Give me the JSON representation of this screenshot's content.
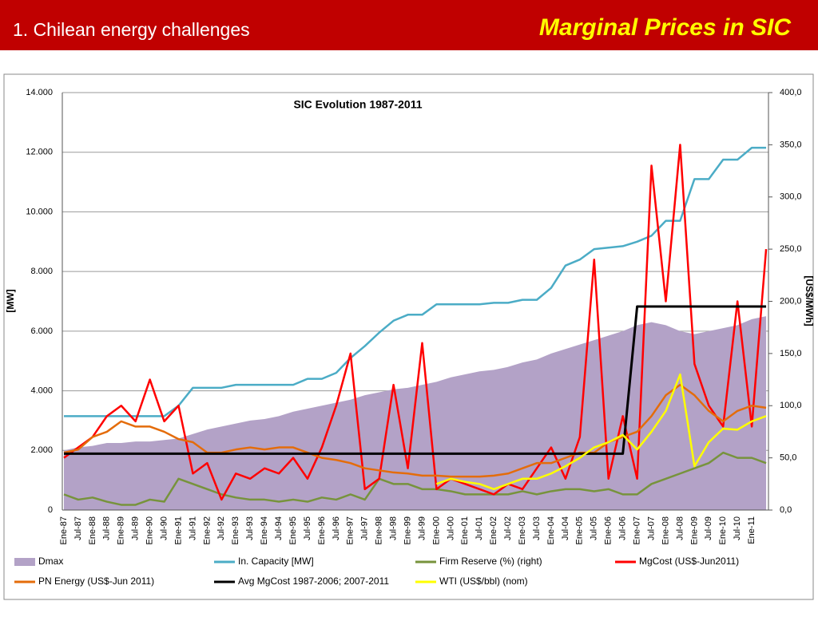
{
  "header": {
    "title": "1. Chilean energy challenges",
    "subtitle": "Marginal Prices in SIC"
  },
  "chart_data": {
    "type": "line",
    "title": "SIC Evolution 1987-2011",
    "ylabel": "[MW]",
    "y2label": "[US$/MWh]",
    "categories": [
      "Ene-87",
      "Jul-87",
      "Ene-88",
      "Jul-88",
      "Ene-89",
      "Jul-89",
      "Ene-90",
      "Jul-90",
      "Ene-91",
      "Jul-91",
      "Ene-92",
      "Jul-92",
      "Ene-93",
      "Jul-93",
      "Ene-94",
      "Jul-94",
      "Ene-95",
      "Jul-95",
      "Ene-96",
      "Jul-96",
      "Ene-97",
      "Jul-97",
      "Ene-98",
      "Jul-98",
      "Ene-99",
      "Jul-99",
      "Ene-00",
      "Jul-00",
      "Ene-01",
      "Jul-01",
      "Ene-02",
      "Jul-02",
      "Ene-03",
      "Jul-03",
      "Ene-04",
      "Jul-04",
      "Ene-05",
      "Jul-05",
      "Ene-06",
      "Jul-06",
      "Ene-07",
      "Jul-07",
      "Ene-08",
      "Jul-08",
      "Ene-09",
      "Jul-09",
      "Ene-10",
      "Jul-10",
      "Ene-11",
      null
    ],
    "ylim": [
      0,
      14000
    ],
    "yticks": [
      0,
      {
        "value": 2000,
        "label": "2.000"
      },
      {
        "value": 4000,
        "label": "4.000"
      },
      {
        "value": 6000,
        "label": "6.000"
      },
      {
        "value": 8000,
        "label": "8.000"
      },
      {
        "value": 10000,
        "label": "10.000"
      },
      {
        "value": 12000,
        "label": "12.000"
      },
      {
        "value": 14000,
        "label": "14.000"
      }
    ],
    "y2lim": [
      0,
      400
    ],
    "y2ticks": [
      {
        "value": 0,
        "label": "0,0"
      },
      {
        "value": 50,
        "label": "50,0"
      },
      {
        "value": 100,
        "label": "100,0"
      },
      {
        "value": 150,
        "label": "150,0"
      },
      {
        "value": 200,
        "label": "200,0"
      },
      {
        "value": 250,
        "label": "250,0"
      },
      {
        "value": 300,
        "label": "300,0"
      },
      {
        "value": 350,
        "label": "350,0"
      },
      {
        "value": 400,
        "label": "400,0"
      }
    ],
    "grid": true,
    "series": [
      {
        "name": "Dmax",
        "type": "area",
        "color": "#b3a2c7",
        "values": [
          2000,
          2100,
          2150,
          2250,
          2250,
          2300,
          2300,
          2350,
          2400,
          2550,
          2700,
          2800,
          2900,
          3000,
          3050,
          3150,
          3300,
          3400,
          3500,
          3600,
          3700,
          3850,
          3950,
          4050,
          4100,
          4200,
          4300,
          4450,
          4550,
          4650,
          4700,
          4800,
          4950,
          5050,
          5250,
          5400,
          5550,
          5700,
          5850,
          6000,
          6200,
          6300,
          6200,
          6000,
          5900,
          6000,
          6100,
          6200,
          6400,
          6500
        ]
      },
      {
        "name": "In. Capacity [MW]",
        "type": "line",
        "color": "#4bacc6",
        "values": [
          3150,
          3150,
          3150,
          3150,
          3150,
          3150,
          3150,
          3150,
          3500,
          4100,
          4100,
          4100,
          4200,
          4200,
          4200,
          4200,
          4200,
          4400,
          4400,
          4600,
          5100,
          5500,
          5950,
          6350,
          6550,
          6550,
          6900,
          6900,
          6900,
          6900,
          6950,
          6950,
          7050,
          7050,
          7450,
          8200,
          8400,
          8750,
          8800,
          8850,
          9000,
          9200,
          9700,
          9700,
          11100,
          11100,
          11750,
          11750,
          12150,
          12150
        ]
      },
      {
        "name": "Firm Reserve  (%) (right)",
        "type": "line",
        "axis": "y2",
        "color": "#77933c",
        "values": [
          15,
          10,
          12,
          8,
          5,
          5,
          10,
          8,
          30,
          25,
          20,
          15,
          12,
          10,
          10,
          8,
          10,
          8,
          12,
          10,
          15,
          10,
          30,
          25,
          25,
          20,
          20,
          18,
          15,
          15,
          15,
          15,
          18,
          15,
          18,
          20,
          20,
          18,
          20,
          15,
          15,
          25,
          30,
          35,
          40,
          45,
          55,
          50,
          50,
          45
        ]
      },
      {
        "name": "MgCost (US$-Jun2011)",
        "type": "line",
        "axis": "y2",
        "color": "#ff0000",
        "values": [
          50,
          60,
          70,
          90,
          100,
          85,
          125,
          85,
          100,
          35,
          45,
          10,
          35,
          30,
          40,
          35,
          50,
          30,
          60,
          100,
          150,
          20,
          30,
          120,
          40,
          160,
          20,
          30,
          25,
          20,
          15,
          25,
          20,
          40,
          60,
          30,
          70,
          240,
          30,
          90,
          30,
          330,
          200,
          350,
          140,
          100,
          80,
          200,
          80,
          250
        ]
      },
      {
        "name": "PN Energy (US$-Jun 2011)",
        "type": "line",
        "axis": "y2",
        "color": "#e46c0a",
        "values": [
          55,
          58,
          70,
          75,
          85,
          80,
          80,
          75,
          68,
          65,
          55,
          55,
          58,
          60,
          58,
          60,
          60,
          55,
          50,
          48,
          45,
          40,
          38,
          36,
          35,
          33,
          33,
          32,
          32,
          32,
          33,
          35,
          40,
          45,
          45,
          50,
          55,
          55,
          65,
          70,
          75,
          90,
          110,
          120,
          110,
          95,
          85,
          95,
          100,
          98
        ]
      },
      {
        "name": "Avg MgCost 1987-2006;  2007-2011",
        "type": "line",
        "axis": "y2",
        "color": "#000000",
        "values": [
          54,
          54,
          54,
          54,
          54,
          54,
          54,
          54,
          54,
          54,
          54,
          54,
          54,
          54,
          54,
          54,
          54,
          54,
          54,
          54,
          54,
          54,
          54,
          54,
          54,
          54,
          54,
          54,
          54,
          54,
          54,
          54,
          54,
          54,
          54,
          54,
          54,
          54,
          54,
          54,
          195,
          195,
          195,
          195,
          195,
          195,
          195,
          195,
          195,
          195
        ]
      },
      {
        "name": "WTI (US$/bbl) (nom)",
        "type": "line",
        "axis": "y2",
        "color": "#ffff00",
        "values": [
          null,
          null,
          null,
          null,
          null,
          null,
          null,
          null,
          null,
          null,
          null,
          null,
          null,
          null,
          null,
          null,
          null,
          null,
          null,
          null,
          null,
          null,
          null,
          null,
          null,
          null,
          25,
          30,
          27,
          25,
          20,
          25,
          30,
          30,
          35,
          42,
          50,
          60,
          65,
          72,
          58,
          75,
          95,
          130,
          42,
          65,
          78,
          77,
          85,
          90
        ]
      }
    ]
  }
}
